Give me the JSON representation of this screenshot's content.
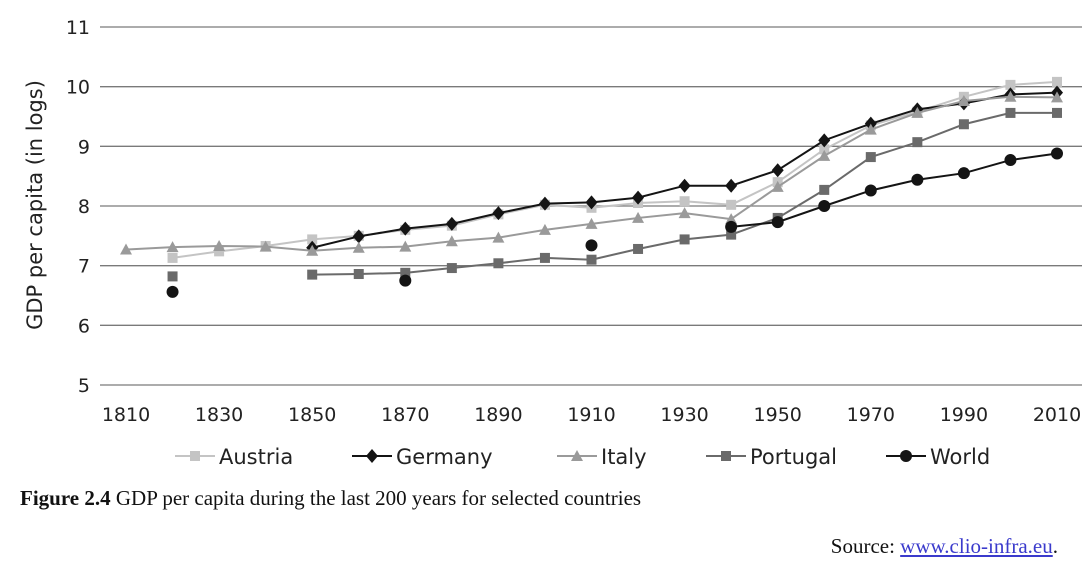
{
  "caption": {
    "label": "Figure 2.4",
    "text": " GDP per capita during the last 200 years for selected countries"
  },
  "source": {
    "prefix": "Source: ",
    "link_text": "www.clio-infra.eu",
    "suffix": "."
  },
  "chart_data": {
    "type": "line",
    "ylabel": "GDP per capita (in logs)",
    "xlim": [
      1810,
      2010
    ],
    "ylim": [
      5,
      11
    ],
    "x_ticks": [
      1810,
      1830,
      1850,
      1870,
      1890,
      1910,
      1930,
      1950,
      1970,
      1990,
      2010
    ],
    "y_ticks": [
      5,
      6,
      7,
      8,
      9,
      10,
      11
    ],
    "grid": "horizontal",
    "legend_position": "bottom",
    "series": [
      {
        "name": "Austria",
        "color": "#c4c4c4",
        "marker": "square",
        "points": [
          [
            1820,
            7.13
          ],
          [
            1830,
            7.24
          ],
          [
            1840,
            7.33
          ],
          [
            1850,
            7.44
          ],
          [
            1860,
            7.5
          ],
          [
            1870,
            7.6
          ],
          [
            1880,
            7.67
          ],
          [
            1890,
            7.86
          ],
          [
            1900,
            8.02
          ],
          [
            1910,
            7.97
          ],
          [
            1920,
            8.05
          ],
          [
            1930,
            8.08
          ],
          [
            1940,
            8.02
          ],
          [
            1950,
            8.4
          ],
          [
            1960,
            8.95
          ],
          [
            1970,
            9.35
          ],
          [
            1980,
            9.58
          ],
          [
            1990,
            9.83
          ],
          [
            2000,
            10.03
          ],
          [
            2010,
            10.08
          ]
        ]
      },
      {
        "name": "Germany",
        "color": "#141414",
        "marker": "diamond",
        "points": [
          [
            1850,
            7.3
          ],
          [
            1860,
            7.49
          ],
          [
            1870,
            7.62
          ],
          [
            1880,
            7.7
          ],
          [
            1890,
            7.88
          ],
          [
            1900,
            8.04
          ],
          [
            1910,
            8.06
          ],
          [
            1920,
            8.14
          ],
          [
            1930,
            8.34
          ],
          [
            1940,
            8.34
          ],
          [
            1950,
            8.6
          ],
          [
            1960,
            9.1
          ],
          [
            1970,
            9.38
          ],
          [
            1980,
            9.62
          ],
          [
            1990,
            9.72
          ],
          [
            2000,
            9.87
          ],
          [
            2010,
            9.9
          ]
        ]
      },
      {
        "name": "Italy",
        "color": "#9a9a9a",
        "marker": "triangle",
        "points": [
          [
            1810,
            7.27
          ],
          [
            1820,
            7.31
          ],
          [
            1830,
            7.33
          ],
          [
            1840,
            7.32
          ],
          [
            1850,
            7.25
          ],
          [
            1860,
            7.3
          ],
          [
            1870,
            7.32
          ],
          [
            1880,
            7.41
          ],
          [
            1890,
            7.47
          ],
          [
            1900,
            7.6
          ],
          [
            1910,
            7.7
          ],
          [
            1920,
            7.8
          ],
          [
            1930,
            7.88
          ],
          [
            1940,
            7.78
          ],
          [
            1950,
            8.32
          ],
          [
            1960,
            8.84
          ],
          [
            1970,
            9.28
          ],
          [
            1980,
            9.56
          ],
          [
            1990,
            9.76
          ],
          [
            2000,
            9.83
          ],
          [
            2010,
            9.82
          ]
        ]
      },
      {
        "name": "Portugal",
        "color": "#6a6a6a",
        "marker": "square",
        "points": [
          [
            1820,
            6.82
          ],
          null,
          [
            1850,
            6.85
          ],
          [
            1860,
            6.86
          ],
          [
            1870,
            6.88
          ],
          [
            1880,
            6.96
          ],
          [
            1890,
            7.04
          ],
          [
            1900,
            7.13
          ],
          [
            1910,
            7.1
          ],
          [
            1920,
            7.28
          ],
          [
            1930,
            7.44
          ],
          [
            1940,
            7.52
          ],
          [
            1950,
            7.8
          ],
          [
            1960,
            8.27
          ],
          [
            1970,
            8.82
          ],
          [
            1980,
            9.07
          ],
          [
            1990,
            9.37
          ],
          [
            2000,
            9.56
          ],
          [
            2010,
            9.56
          ]
        ]
      },
      {
        "name": "World",
        "color": "#141414",
        "marker": "circle",
        "points": [
          [
            1820,
            6.56
          ],
          null,
          [
            1870,
            6.75
          ],
          null,
          [
            1910,
            7.34
          ],
          null,
          [
            1940,
            7.65
          ],
          [
            1950,
            7.73
          ],
          [
            1960,
            8.0
          ],
          [
            1970,
            8.26
          ],
          [
            1980,
            8.44
          ],
          [
            1990,
            8.55
          ],
          [
            2000,
            8.77
          ],
          [
            2010,
            8.88
          ]
        ]
      }
    ]
  }
}
